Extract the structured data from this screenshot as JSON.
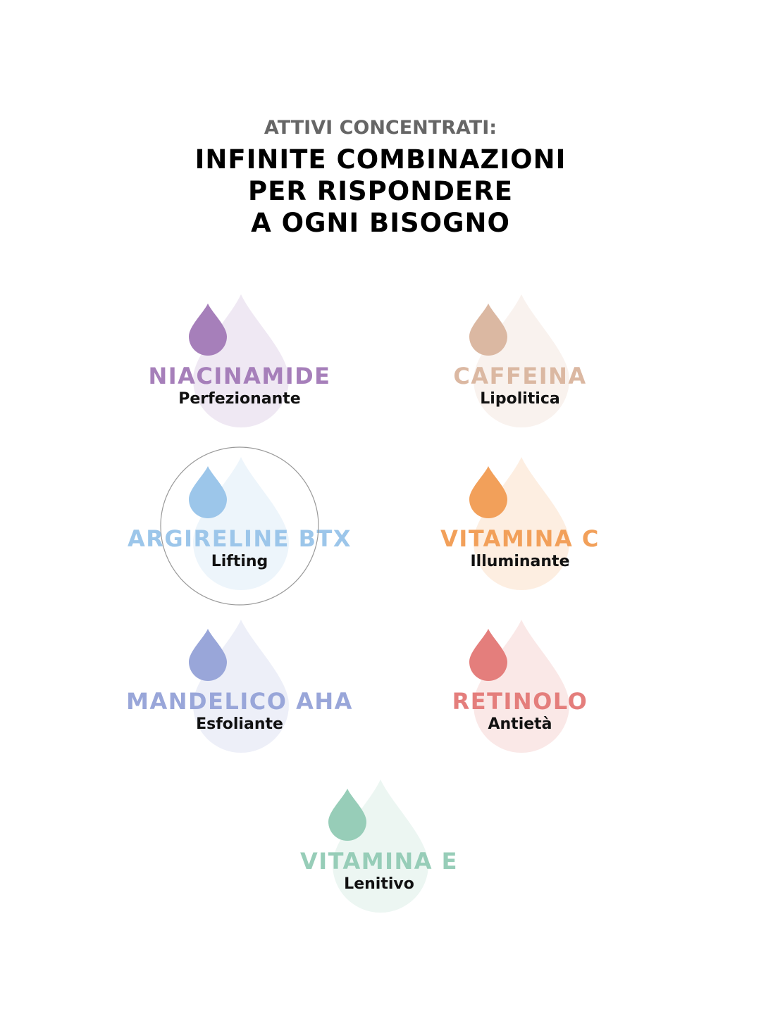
{
  "header": {
    "kicker": "ATTIVI CONCENTRATI:",
    "title": [
      "INFINITE COMBINAZIONI",
      "PER RISPONDERE",
      "A OGNI BISOGNO"
    ]
  },
  "items": [
    {
      "name": "NIACINAMIDE",
      "benefit": "Perfezionante",
      "color": "#a67fba"
    },
    {
      "name": "CAFFEINA",
      "benefit": "Lipolitica",
      "color": "#dbb8a2"
    },
    {
      "name": "ARGIRELINE BTX",
      "benefit": "Lifting",
      "color": "#9cc6ea"
    },
    {
      "name": "VITAMINA C",
      "benefit": "Illuminante",
      "color": "#f2a05a"
    },
    {
      "name": "MANDELICO AHA",
      "benefit": "Esfoliante",
      "color": "#99a6d9"
    },
    {
      "name": "RETINOLO",
      "benefit": "Antietà",
      "color": "#e47e7c"
    },
    {
      "name": "VITAMINA E",
      "benefit": "Lenitivo",
      "color": "#97cdb8"
    }
  ]
}
